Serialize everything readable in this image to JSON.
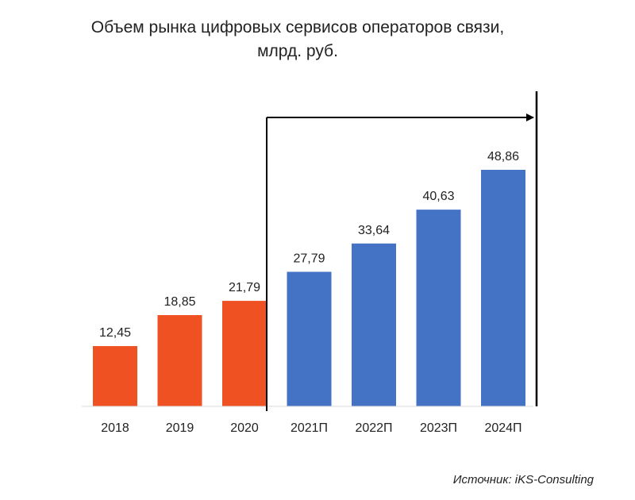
{
  "chart_data": {
    "type": "bar",
    "title_lines": [
      "Объем рынка цифровых сервисов операторов связи,",
      "млрд. руб."
    ],
    "categories": [
      "2018",
      "2019",
      "2020",
      "2021П",
      "2022П",
      "2023П",
      "2024П"
    ],
    "values": [
      12.45,
      18.85,
      21.79,
      27.79,
      33.64,
      40.63,
      48.86
    ],
    "value_labels": [
      "12,45",
      "18,85",
      "21,79",
      "27,79",
      "33,64",
      "40,63",
      "48,86"
    ],
    "bar_colors": [
      "#F05123",
      "#F05123",
      "#F05123",
      "#4472C4",
      "#4472C4",
      "#4472C4",
      "#4472C4"
    ],
    "ylim": [
      0,
      60
    ],
    "grid": false,
    "forecast_from_index": 3
  },
  "source": "Источник: iKS-Consulting"
}
